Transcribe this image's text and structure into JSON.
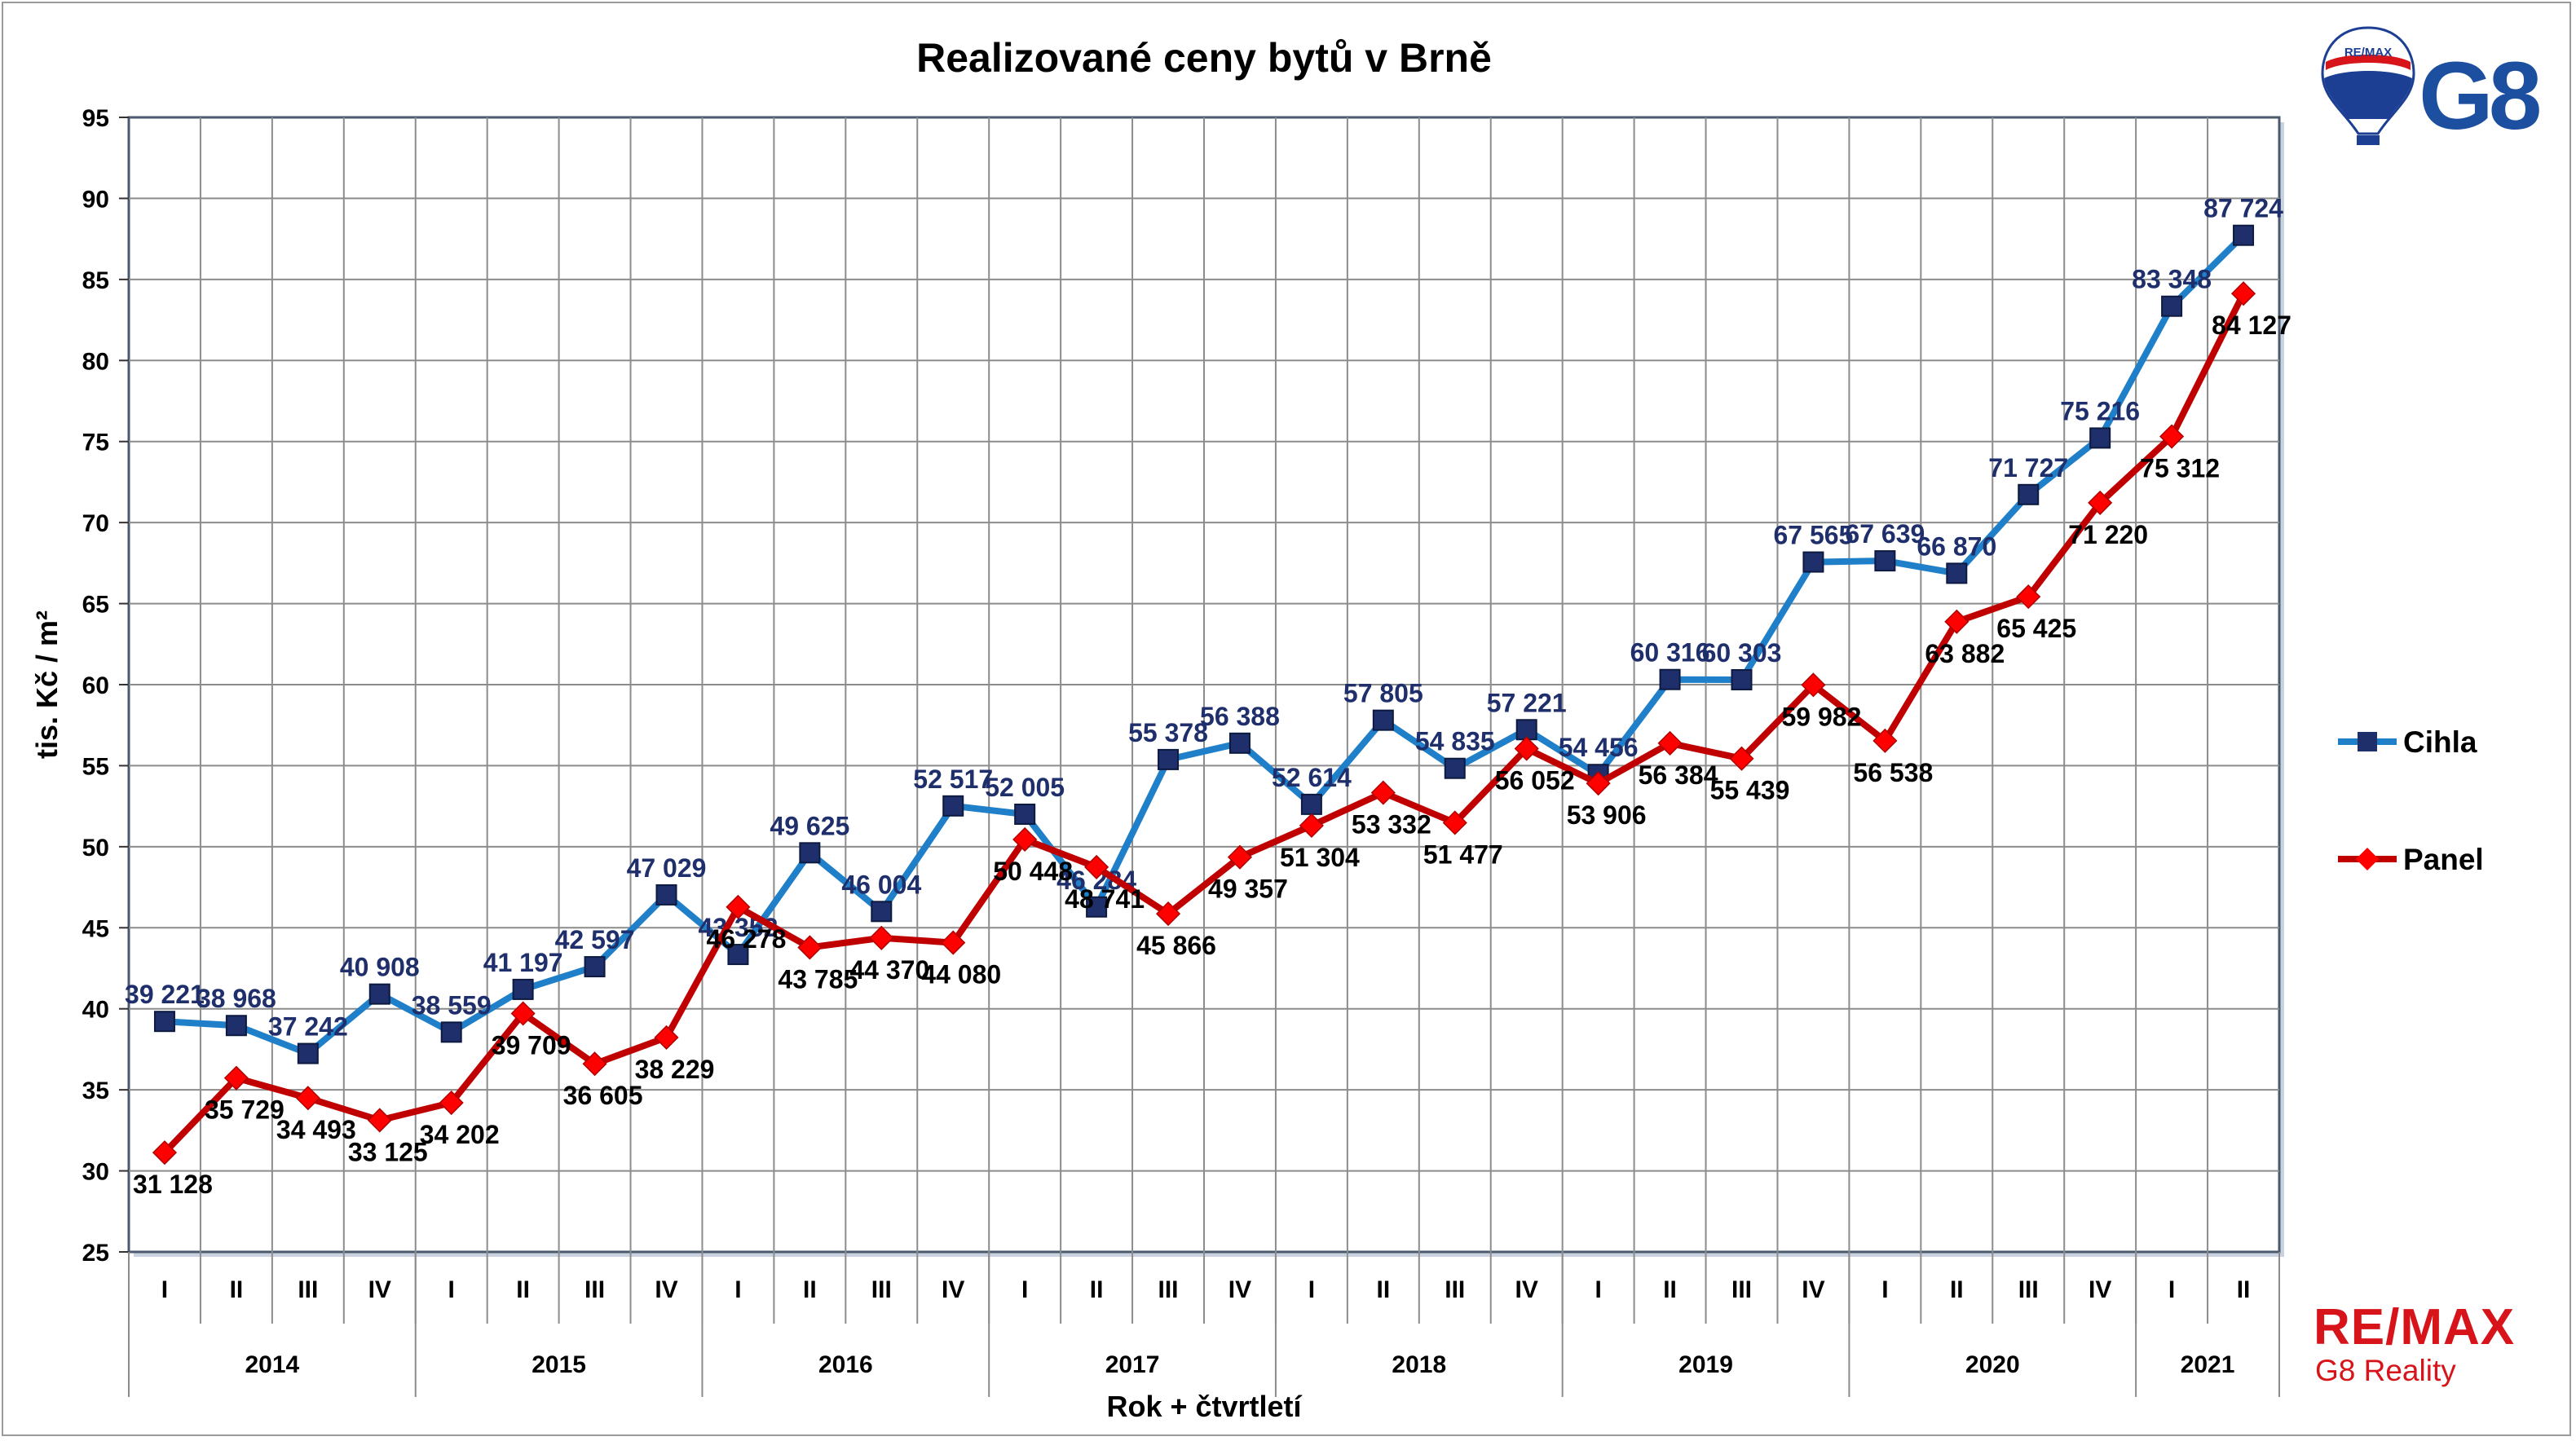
{
  "chart_data": {
    "type": "line",
    "title": "Realizované ceny bytů v Brně",
    "xlabel": "Rok + čtvrtletí",
    "ylabel": "tis. Kč / m²",
    "ylim": [
      25,
      95
    ],
    "yticks": [
      "25",
      "30",
      "35",
      "40",
      "45",
      "50",
      "55",
      "60",
      "65",
      "70",
      "75",
      "80",
      "85",
      "90",
      "95"
    ],
    "quarters": [
      "I",
      "II",
      "III",
      "IV",
      "I",
      "II",
      "III",
      "IV",
      "I",
      "II",
      "III",
      "IV",
      "I",
      "II",
      "III",
      "IV",
      "I",
      "II",
      "III",
      "IV",
      "I",
      "II",
      "III",
      "IV",
      "I",
      "II",
      "III",
      "IV",
      "I",
      "II"
    ],
    "years": [
      {
        "label": "2014",
        "span": 4
      },
      {
        "label": "2015",
        "span": 4
      },
      {
        "label": "2016",
        "span": 4
      },
      {
        "label": "2017",
        "span": 4
      },
      {
        "label": "2018",
        "span": 4
      },
      {
        "label": "2019",
        "span": 4
      },
      {
        "label": "2020",
        "span": 4
      },
      {
        "label": "2021",
        "span": 2
      }
    ],
    "grid": true,
    "legend_position": "right",
    "series": [
      {
        "name": "Cihla",
        "color": "#1f7fc8",
        "marker_color": "#1f2f6b",
        "label_color": "#1f2f6b",
        "marker": "square",
        "values": [
          39.221,
          38.968,
          37.242,
          40.908,
          38.559,
          41.197,
          42.597,
          47.029,
          43.352,
          49.625,
          46.004,
          52.517,
          52.005,
          46.284,
          55.378,
          56.388,
          52.614,
          57.805,
          54.835,
          57.221,
          54.456,
          60.316,
          60.303,
          67.565,
          67.639,
          66.87,
          71.727,
          75.216,
          83.348,
          87.724
        ],
        "labels": [
          "39 221",
          "38 968",
          "37 242",
          "40 908",
          "38 559",
          "41 197",
          "42 597",
          "47 029",
          "43 352",
          "49 625",
          "46 004",
          "52 517",
          "52 005",
          "46 284",
          "55 378",
          "56 388",
          "52 614",
          "57 805",
          "54 835",
          "57 221",
          "54 456",
          "60 316",
          "60 303",
          "67 565",
          "67 639",
          "66 870",
          "71 727",
          "75 216",
          "83 348",
          "87 724"
        ]
      },
      {
        "name": "Panel",
        "color": "#c00000",
        "marker_color": "#ff0000",
        "label_color": "#000000",
        "marker": "diamond",
        "values": [
          31.128,
          35.729,
          34.493,
          33.125,
          34.202,
          39.709,
          36.605,
          38.229,
          46.278,
          43.785,
          44.37,
          44.08,
          50.448,
          48.741,
          45.866,
          49.357,
          51.304,
          53.332,
          51.477,
          56.052,
          53.906,
          56.384,
          55.439,
          59.982,
          56.538,
          63.882,
          65.425,
          71.22,
          75.312,
          84.127
        ],
        "labels": [
          "31 128",
          "35 729",
          "34 493",
          "33 125",
          "34 202",
          "39 709",
          "36 605",
          "38 229",
          "46 278",
          "43 785",
          "44 370",
          "44 080",
          "50 448",
          "48 741",
          "45 866",
          "49 357",
          "51 304",
          "53 332",
          "51 477",
          "56 052",
          "53 906",
          "56 384",
          "55 439",
          "59 982",
          "56 538",
          "63 882",
          "65 425",
          "71 220",
          "75 312",
          "84 127"
        ]
      }
    ]
  },
  "logos": {
    "top_right_text": "G8",
    "top_right_balloon_text": "RE/MAX",
    "bottom_right_brand": "RE/MAX",
    "bottom_right_subtitle": "G8 Reality"
  }
}
